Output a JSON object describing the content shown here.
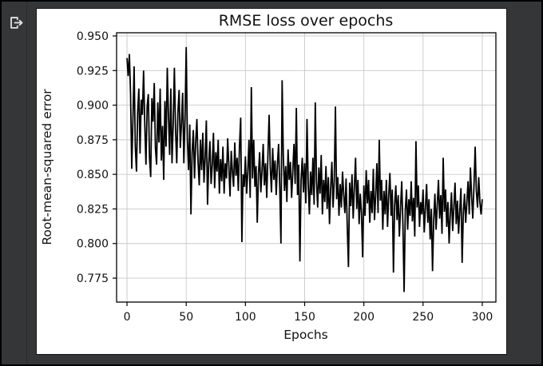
{
  "window": {
    "background_color": "#353638",
    "border_color": "#000000",
    "figure_background": "#ffffff"
  },
  "icons": {
    "top_left": "logout-export-arrow-icon"
  },
  "chart_data": {
    "type": "line",
    "title": "RMSE loss over epochs",
    "xlabel": "Epochs",
    "ylabel": "Root-mean-squared error",
    "x_ticks": [
      0,
      50,
      100,
      150,
      200,
      250,
      300
    ],
    "y_tick_labels": [
      "0.775",
      "0.800",
      "0.825",
      "0.850",
      "0.875",
      "0.900",
      "0.925",
      "0.950"
    ],
    "xlim": [
      -8.8,
      311.5
    ],
    "ylim": [
      0.7577,
      0.9523
    ],
    "grid": true,
    "grid_color": "#c9c9c9",
    "line_color": "#000000",
    "line_width": 1.8,
    "x_start": 0,
    "x_step": 1,
    "values": [
      0.934,
      0.921,
      0.937,
      0.908,
      0.854,
      0.89,
      0.928,
      0.87,
      0.852,
      0.895,
      0.912,
      0.865,
      0.904,
      0.893,
      0.925,
      0.886,
      0.857,
      0.899,
      0.908,
      0.862,
      0.848,
      0.905,
      0.888,
      0.916,
      0.869,
      0.857,
      0.902,
      0.873,
      0.912,
      0.86,
      0.885,
      0.846,
      0.903,
      0.87,
      0.927,
      0.893,
      0.864,
      0.912,
      0.858,
      0.886,
      0.927,
      0.882,
      0.858,
      0.895,
      0.911,
      0.869,
      0.887,
      0.909,
      0.858,
      0.891,
      0.942,
      0.875,
      0.853,
      0.886,
      0.821,
      0.866,
      0.882,
      0.847,
      0.873,
      0.89,
      0.859,
      0.842,
      0.875,
      0.853,
      0.88,
      0.844,
      0.862,
      0.889,
      0.828,
      0.858,
      0.874,
      0.843,
      0.857,
      0.88,
      0.84,
      0.866,
      0.852,
      0.875,
      0.836,
      0.861,
      0.845,
      0.87,
      0.836,
      0.858,
      0.847,
      0.876,
      0.856,
      0.834,
      0.867,
      0.852,
      0.841,
      0.873,
      0.849,
      0.862,
      0.838,
      0.871,
      0.891,
      0.801,
      0.85,
      0.841,
      0.863,
      0.836,
      0.852,
      0.875,
      0.833,
      0.913,
      0.847,
      0.875,
      0.841,
      0.856,
      0.815,
      0.85,
      0.866,
      0.837,
      0.852,
      0.872,
      0.842,
      0.858,
      0.833,
      0.864,
      0.893,
      0.855,
      0.837,
      0.869,
      0.846,
      0.86,
      0.835,
      0.857,
      0.872,
      0.84,
      0.8,
      0.918,
      0.863,
      0.838,
      0.856,
      0.83,
      0.868,
      0.846,
      0.859,
      0.833,
      0.852,
      0.872,
      0.843,
      0.898,
      0.835,
      0.857,
      0.787,
      0.846,
      0.862,
      0.837,
      0.858,
      0.829,
      0.89,
      0.843,
      0.821,
      0.852,
      0.835,
      0.862,
      0.828,
      0.902,
      0.845,
      0.826,
      0.855,
      0.836,
      0.864,
      0.821,
      0.846,
      0.83,
      0.856,
      0.825,
      0.848,
      0.814,
      0.84,
      0.859,
      0.826,
      0.845,
      0.899,
      0.832,
      0.848,
      0.82,
      0.843,
      0.826,
      0.852,
      0.835,
      0.822,
      0.847,
      0.812,
      0.783,
      0.844,
      0.827,
      0.85,
      0.818,
      0.841,
      0.862,
      0.825,
      0.846,
      0.814,
      0.836,
      0.822,
      0.79,
      0.842,
      0.82,
      0.853,
      0.829,
      0.846,
      0.815,
      0.838,
      0.822,
      0.854,
      0.817,
      0.835,
      0.858,
      0.822,
      0.875,
      0.831,
      0.846,
      0.81,
      0.838,
      0.821,
      0.846,
      0.812,
      0.835,
      0.851,
      0.82,
      0.839,
      0.779,
      0.828,
      0.842,
      0.817,
      0.835,
      0.805,
      0.826,
      0.845,
      0.813,
      0.765,
      0.824,
      0.839,
      0.81,
      0.832,
      0.82,
      0.845,
      0.816,
      0.833,
      0.805,
      0.874,
      0.826,
      0.842,
      0.812,
      0.83,
      0.821,
      0.839,
      0.808,
      0.826,
      0.843,
      0.815,
      0.832,
      0.803,
      0.825,
      0.78,
      0.817,
      0.836,
      0.81,
      0.828,
      0.846,
      0.818,
      0.835,
      0.807,
      0.862,
      0.823,
      0.839,
      0.812,
      0.83,
      0.8,
      0.821,
      0.837,
      0.809,
      0.826,
      0.844,
      0.814,
      0.831,
      0.807,
      0.824,
      0.84,
      0.786,
      0.822,
      0.836,
      0.815,
      0.83,
      0.845,
      0.821,
      0.855,
      0.834,
      0.818,
      0.842,
      0.87,
      0.838,
      0.826,
      0.848,
      0.83,
      0.821,
      0.832
    ]
  }
}
